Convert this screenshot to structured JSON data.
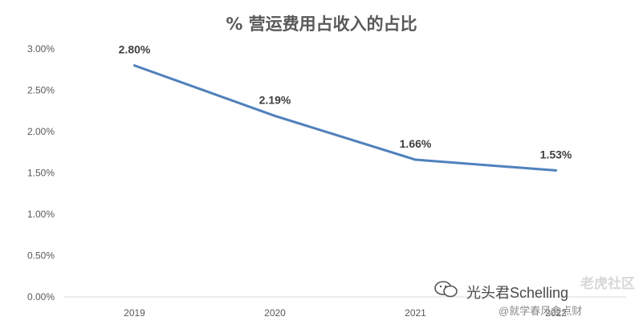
{
  "chart_data": {
    "type": "line",
    "title": "% 营运费用占收入的占比",
    "xlabel": "",
    "ylabel": "",
    "categories": [
      "2019",
      "2020",
      "2021",
      "2022"
    ],
    "series": [
      {
        "values": [
          2.8,
          2.19,
          1.66,
          1.53
        ]
      }
    ],
    "data_labels": [
      "2.80%",
      "2.19%",
      "1.66%",
      "1.53%"
    ],
    "y_ticks": [
      "0.00%",
      "0.50%",
      "1.00%",
      "1.50%",
      "2.00%",
      "2.50%",
      "3.00%"
    ],
    "ylim": [
      0,
      3.0
    ],
    "grid": false,
    "colors": {
      "line": "#4f81bd",
      "axis_text": "#595959",
      "axis_line": "#d9d9d9"
    }
  },
  "watermark": {
    "brand": "老虎社区",
    "line1": "光头君Schelling",
    "line2": "@就学春风盒点财"
  }
}
